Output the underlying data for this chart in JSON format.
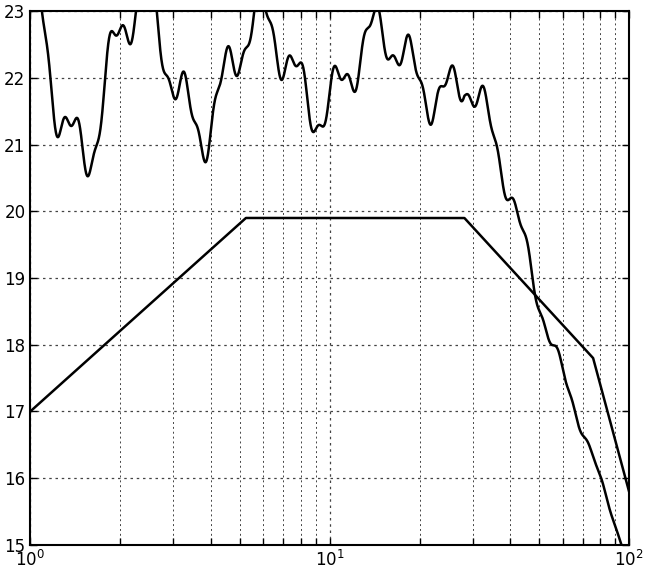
{
  "title": "",
  "xlim_log": [
    1,
    100
  ],
  "ylim": [
    15,
    23
  ],
  "yticks": [
    15,
    16,
    17,
    18,
    19,
    20,
    21,
    22,
    23
  ],
  "xtick_positions": [
    1,
    10,
    100
  ],
  "background_color": "#ffffff",
  "grid_color": "#444444",
  "line_color": "#000000",
  "line_width": 1.8
}
